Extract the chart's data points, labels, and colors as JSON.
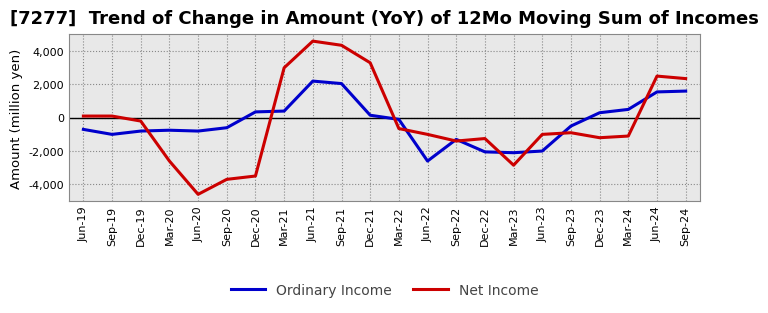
{
  "title": "[7277]  Trend of Change in Amount (YoY) of 12Mo Moving Sum of Incomes",
  "ylabel": "Amount (million yen)",
  "x_labels": [
    "Jun-19",
    "Sep-19",
    "Dec-19",
    "Mar-20",
    "Jun-20",
    "Sep-20",
    "Dec-20",
    "Mar-21",
    "Jun-21",
    "Sep-21",
    "Dec-21",
    "Mar-22",
    "Jun-22",
    "Sep-22",
    "Dec-22",
    "Mar-23",
    "Jun-23",
    "Sep-23",
    "Dec-23",
    "Mar-24",
    "Jun-24",
    "Sep-24"
  ],
  "ordinary_income": [
    -700,
    -1000,
    -800,
    -750,
    -800,
    -600,
    350,
    400,
    2200,
    2050,
    150,
    -100,
    -2600,
    -1300,
    -2050,
    -2100,
    -2000,
    -500,
    300,
    500,
    1550,
    1600
  ],
  "net_income": [
    100,
    100,
    -200,
    -2600,
    -4600,
    -3700,
    -3500,
    3000,
    4600,
    4350,
    3300,
    -650,
    -1000,
    -1400,
    -1250,
    -2850,
    -1000,
    -900,
    -1200,
    -1100,
    2500,
    2350
  ],
  "ordinary_color": "#0000cc",
  "net_color": "#cc0000",
  "ylim": [
    -5000,
    5000
  ],
  "yticks": [
    -4000,
    -2000,
    0,
    2000,
    4000
  ],
  "background_color": "#ffffff",
  "plot_bg_color": "#e8e8e8",
  "grid_color": "#888888",
  "line_width": 2.2,
  "title_fontsize": 13,
  "legend_fontsize": 10,
  "tick_fontsize": 8
}
